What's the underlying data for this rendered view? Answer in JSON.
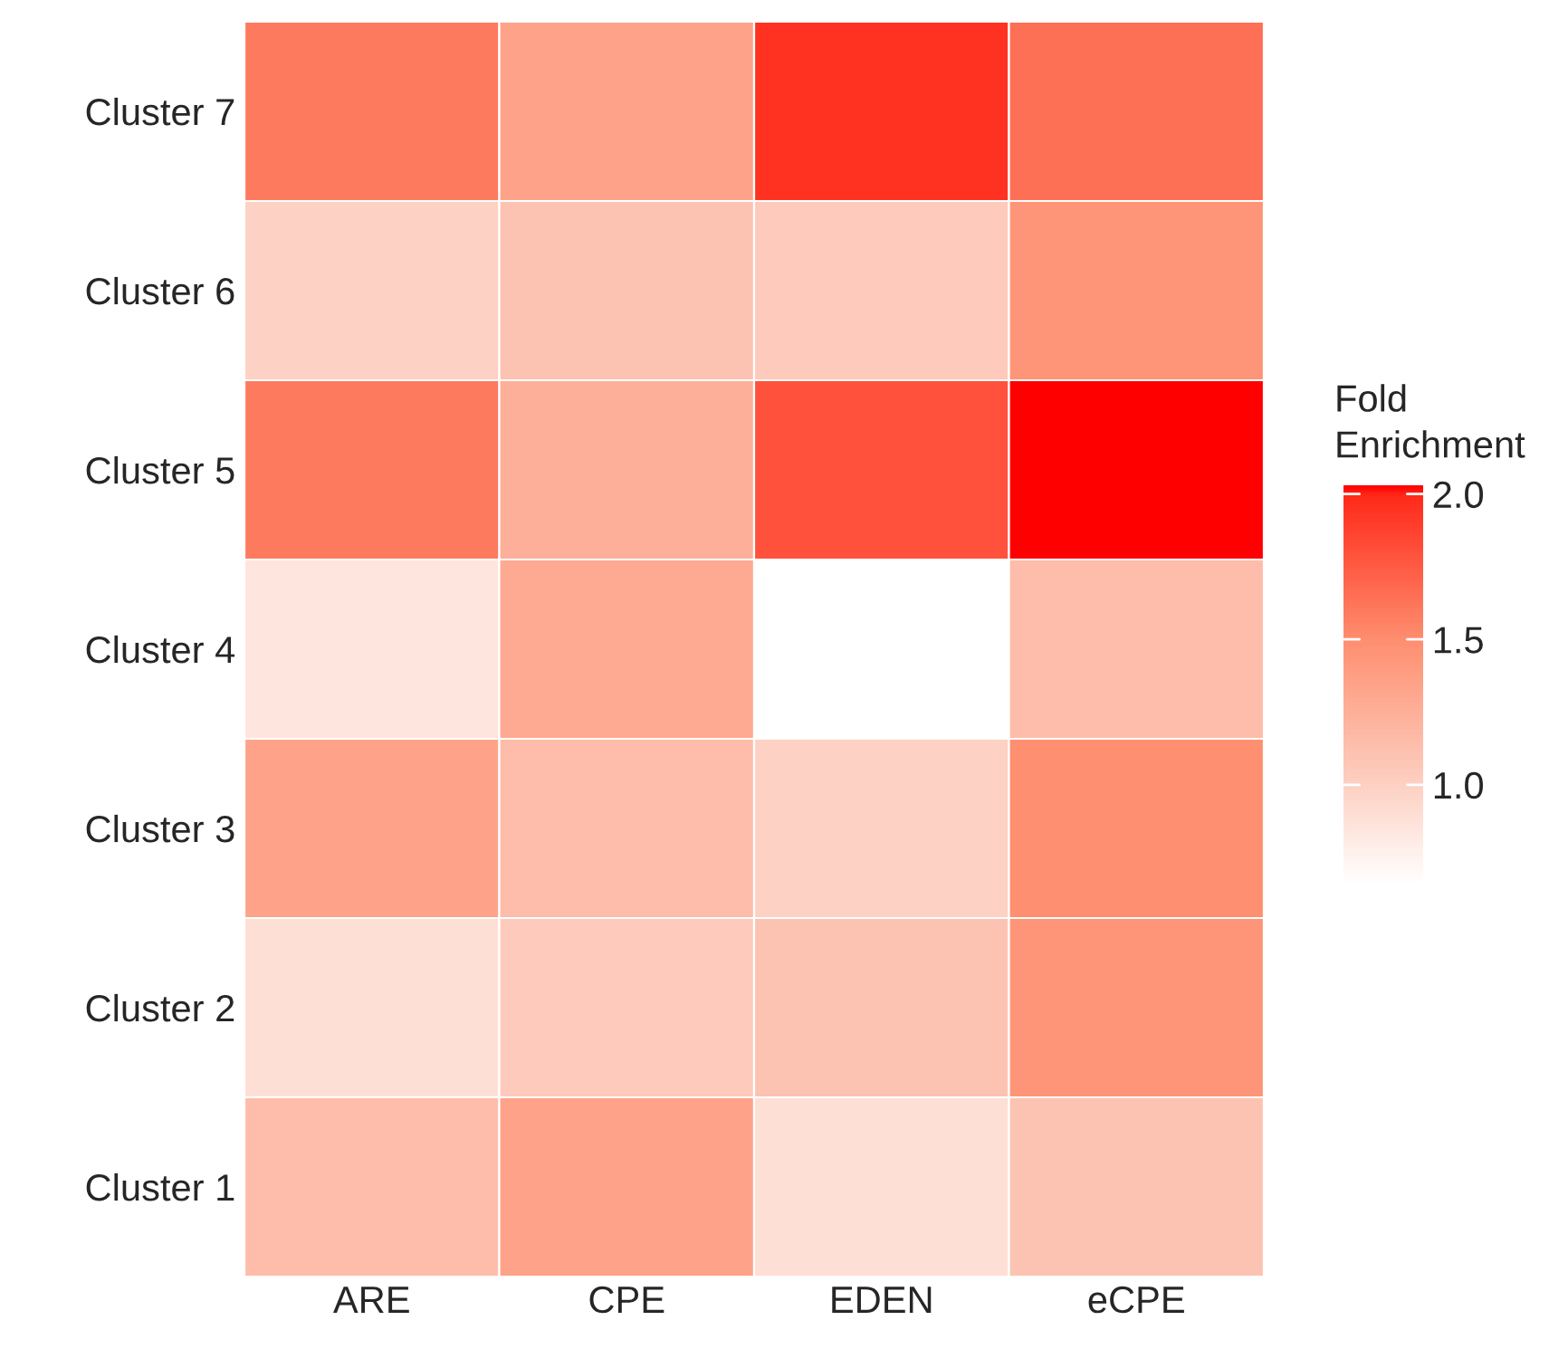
{
  "chart_data": {
    "type": "heatmap",
    "legend_title": "Fold\nEnrichment",
    "categories": [
      "ARE",
      "CPE",
      "EDEN",
      "eCPE"
    ],
    "y_categories": [
      "Cluster 7",
      "Cluster 6",
      "Cluster 5",
      "Cluster 4",
      "Cluster 3",
      "Cluster 2",
      "Cluster 1"
    ],
    "cells": [
      [
        1.6,
        1.35,
        1.95,
        1.65
      ],
      [
        1.0,
        1.1,
        1.05,
        1.45
      ],
      [
        1.6,
        1.25,
        1.8,
        2.03
      ],
      [
        0.85,
        1.3,
        0.66,
        1.15
      ],
      [
        1.35,
        1.15,
        1.0,
        1.5
      ],
      [
        0.9,
        1.05,
        1.1,
        1.45
      ],
      [
        1.15,
        1.35,
        0.9,
        1.1
      ]
    ],
    "clim": [
      0.66,
      2.03
    ],
    "cticks": [
      {
        "value": 1,
        "label": "1.0"
      },
      {
        "value": 1.5,
        "label": "1.5"
      },
      {
        "value": 2,
        "label": "2.0"
      }
    ]
  }
}
